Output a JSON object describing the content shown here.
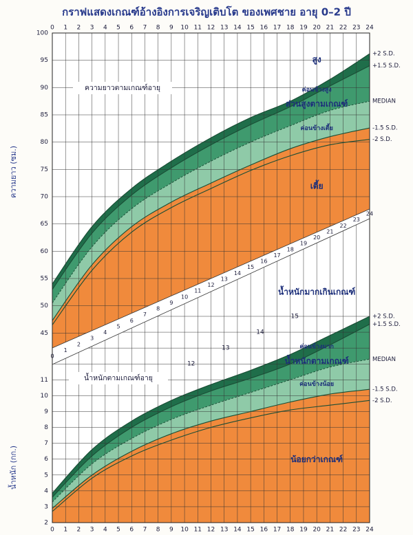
{
  "title": "กราฟแสดงเกณฑ์อ้างอิงการเจริญเติบโต ของเพศชาย อายุ 0–2 ปี",
  "chart_data": [
    {
      "type": "line",
      "title": "ความยาวตามเกณฑ์อายุ",
      "y_label": "ความยาว (ซม.)",
      "x": [
        0,
        3,
        6,
        9,
        12,
        15,
        18,
        21,
        24
      ],
      "xlim": [
        0,
        24
      ],
      "xticks": [
        0,
        1,
        2,
        3,
        4,
        5,
        6,
        7,
        8,
        9,
        10,
        11,
        12,
        13,
        14,
        15,
        16,
        17,
        18,
        19,
        20,
        21,
        22,
        23,
        24
      ],
      "ylim": [
        40,
        100
      ],
      "yticks": [
        45,
        50,
        55,
        60,
        65,
        70,
        75,
        80,
        85,
        90,
        95,
        100
      ],
      "grid": true,
      "series": [
        {
          "name": "+2 S.D.",
          "color": "#1a4d35",
          "values": [
            54,
            64.5,
            71.5,
            76.5,
            80.8,
            84.5,
            87.5,
            91.5,
            96.2
          ]
        },
        {
          "name": "+1.5 S.D.",
          "color": "#1a4d35",
          "values": [
            53,
            63.3,
            70.3,
            75.3,
            79.5,
            83.2,
            86.5,
            90.3,
            94
          ]
        },
        {
          "name": "MEDIAN",
          "color": "#1a4d35",
          "dashed": true,
          "values": [
            50.5,
            60.8,
            67.8,
            72.5,
            76.5,
            80,
            83,
            85.8,
            87.5
          ]
        },
        {
          "name": "-1.5 S.D.",
          "color": "#1a4d35",
          "values": [
            47.3,
            57.5,
            64.5,
            69,
            72.5,
            75.8,
            78.8,
            81,
            82.6
          ]
        },
        {
          "name": "-2 S.D.",
          "color": "#1a4d35",
          "values": [
            46.5,
            56.5,
            63.5,
            68,
            71.5,
            74.8,
            77.5,
            79.5,
            80.5
          ]
        }
      ],
      "zones": [
        {
          "name": "สูง",
          "color": "#ffffff"
        },
        {
          "name": "ค่อนข้างสูง",
          "color": "#1f6e4a"
        },
        {
          "name": "ส่วนสูงตามเกณฑ์",
          "color": "#3f9a6e"
        },
        {
          "name": "ค่อนข้างเตี้ย",
          "color": "#8fcaa8"
        },
        {
          "name": "เตี้ย",
          "color": "#f08a3c"
        }
      ]
    },
    {
      "type": "line",
      "title": "น้ำหนักตามเกณฑ์อายุ",
      "y_label": "น้ำหนัก (กก.)",
      "x": [
        0,
        3,
        6,
        9,
        12,
        15,
        18,
        21,
        24
      ],
      "xlim": [
        0,
        24
      ],
      "xticks": [
        0,
        1,
        2,
        3,
        4,
        5,
        6,
        7,
        8,
        9,
        10,
        11,
        12,
        13,
        14,
        15,
        16,
        17,
        18,
        19,
        20,
        21,
        22,
        23,
        24
      ],
      "ylim": [
        2,
        15
      ],
      "yticks": [
        2,
        3,
        4,
        5,
        6,
        7,
        8,
        9,
        10,
        11,
        12,
        13,
        14,
        15
      ],
      "grid": true,
      "series": [
        {
          "name": "+2 S.D.",
          "color": "#1a4d35",
          "values": [
            3.85,
            6.6,
            8.4,
            9.7,
            10.7,
            11.6,
            12.6,
            13.8,
            15
          ]
        },
        {
          "name": "+1.5 S.D.",
          "color": "#1a4d35",
          "values": [
            3.6,
            6.2,
            8.0,
            9.3,
            10.3,
            11.1,
            12.0,
            13.2,
            14.5
          ]
        },
        {
          "name": "MEDIAN",
          "color": "#1a4d35",
          "dashed": true,
          "values": [
            3.3,
            5.7,
            7.3,
            8.5,
            9.4,
            10.2,
            11.0,
            11.8,
            12.3
          ]
        },
        {
          "name": "-1.5 S.D.",
          "color": "#1a4d35",
          "values": [
            2.9,
            5.0,
            6.5,
            7.6,
            8.4,
            9.0,
            9.6,
            10.1,
            10.4
          ]
        },
        {
          "name": "-2 S.D.",
          "color": "#1a4d35",
          "values": [
            2.7,
            4.8,
            6.2,
            7.2,
            8.0,
            8.6,
            9.1,
            9.4,
            9.7
          ]
        }
      ],
      "zones": [
        {
          "name": "น้ำหนักมากเกินเกณฑ์",
          "color": "#ffffff"
        },
        {
          "name": "ค่อนข้างมาก",
          "color": "#1f6e4a"
        },
        {
          "name": "น้ำหนักตามเกณฑ์",
          "color": "#3f9a6e"
        },
        {
          "name": "ค่อนข้างน้อย",
          "color": "#8fcaa8"
        },
        {
          "name": "น้อยกว่าเกณฑ์",
          "color": "#f08a3c"
        }
      ]
    }
  ]
}
